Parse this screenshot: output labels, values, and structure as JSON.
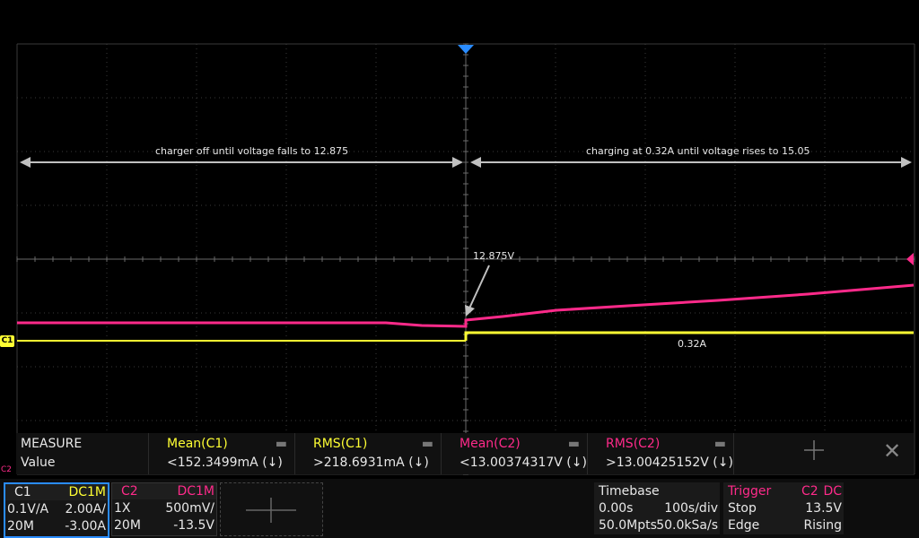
{
  "annotations": {
    "left_text": "charger off until voltage falls to 12.875",
    "right_text": "charging at 0.32A until voltage rises to 15.05",
    "voltage_label": "12.875V",
    "current_label": "0.32A"
  },
  "markers": {
    "c1": "C1",
    "c2": "C2"
  },
  "measure": {
    "title": "MEASURE",
    "value_label": "Value",
    "columns": [
      {
        "name": "Mean(C1)",
        "value": "<152.3499mA (↓)",
        "color": "#ffff33"
      },
      {
        "name": "RMS(C1)",
        "value": ">218.6931mA (↓)",
        "color": "#ffff33"
      },
      {
        "name": "Mean(C2)",
        "value": "<13.00374317V (↓)",
        "color": "#ff2a8a"
      },
      {
        "name": "RMS(C2)",
        "value": ">13.00425152V (↓)",
        "color": "#ff2a8a"
      }
    ]
  },
  "channels": {
    "c1": {
      "name": "C1",
      "coupling": "DC1M",
      "probe": "0.1V/A",
      "scale": "2.00A/",
      "bw": "20M",
      "offset": "-3.00A",
      "color": "#ffff33"
    },
    "c2": {
      "name": "C2",
      "coupling": "DC1M",
      "probe": "1X",
      "scale": "500mV/",
      "bw": "20M",
      "offset": "-13.5V",
      "color": "#ff2a8a"
    }
  },
  "timebase": {
    "title": "Timebase",
    "delay": "0.00s",
    "scale": "100s/div",
    "memory": "50.0Mpts",
    "sample_rate": "50.0kSa/s"
  },
  "trigger": {
    "title": "Trigger",
    "source": "C2",
    "coupling": "DC",
    "mode": "Stop",
    "level": "13.5V",
    "type": "Edge",
    "slope": "Rising"
  }
}
